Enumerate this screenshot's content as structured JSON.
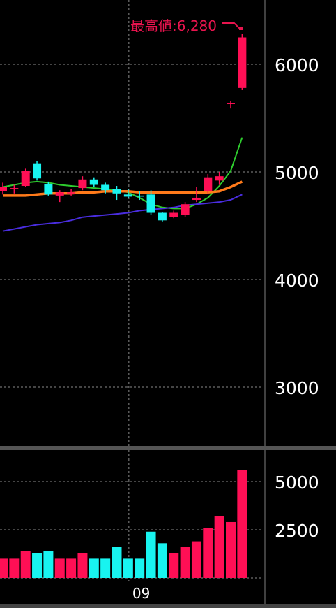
{
  "colors": {
    "background": "#000000",
    "up": "#ff0f55",
    "down": "#18f4f0",
    "ma_short": "#2ecc2e",
    "ma_mid": "#ff7a1a",
    "ma_long": "#4a2de0",
    "grid": "#8a8a8a",
    "separator": "#555555"
  },
  "chart_data": {
    "type": "candlestick",
    "price_axis": {
      "ticks": [
        6000,
        5000,
        4000,
        3000
      ],
      "tick_labels": [
        "6000",
        "5000",
        "4000",
        "3000"
      ],
      "range": [
        2450,
        6600
      ]
    },
    "volume_axis": {
      "ticks": [
        5000,
        2500
      ],
      "tick_labels": [
        "5000",
        "2500"
      ],
      "range": [
        0,
        5600
      ]
    },
    "x_labels": [
      {
        "index": 11,
        "label": "09"
      }
    ],
    "high_annotation": "最高値:6,280",
    "candles": [
      {
        "o": 4820,
        "h": 4900,
        "l": 4790,
        "c": 4860
      },
      {
        "o": 4840,
        "h": 4880,
        "l": 4800,
        "c": 4850
      },
      {
        "o": 4870,
        "h": 5030,
        "l": 4860,
        "c": 5010
      },
      {
        "o": 5080,
        "h": 5100,
        "l": 4920,
        "c": 4940
      },
      {
        "o": 4890,
        "h": 4910,
        "l": 4780,
        "c": 4790
      },
      {
        "o": 4780,
        "h": 4830,
        "l": 4720,
        "c": 4810
      },
      {
        "o": 4800,
        "h": 4840,
        "l": 4780,
        "c": 4810
      },
      {
        "o": 4850,
        "h": 4960,
        "l": 4830,
        "c": 4930
      },
      {
        "o": 4930,
        "h": 4950,
        "l": 4860,
        "c": 4880
      },
      {
        "o": 4880,
        "h": 4900,
        "l": 4800,
        "c": 4830
      },
      {
        "o": 4840,
        "h": 4870,
        "l": 4740,
        "c": 4800
      },
      {
        "o": 4790,
        "h": 4840,
        "l": 4760,
        "c": 4770
      },
      {
        "o": 4780,
        "h": 4820,
        "l": 4740,
        "c": 4770
      },
      {
        "o": 4790,
        "h": 4830,
        "l": 4600,
        "c": 4620
      },
      {
        "o": 4620,
        "h": 4630,
        "l": 4540,
        "c": 4550
      },
      {
        "o": 4580,
        "h": 4640,
        "l": 4570,
        "c": 4620
      },
      {
        "o": 4600,
        "h": 4720,
        "l": 4580,
        "c": 4700
      },
      {
        "o": 4740,
        "h": 4860,
        "l": 4720,
        "c": 4760
      },
      {
        "o": 4820,
        "h": 4980,
        "l": 4800,
        "c": 4950
      },
      {
        "o": 4920,
        "h": 5000,
        "l": 4880,
        "c": 4960
      },
      {
        "o": 5640,
        "h": 5660,
        "l": 5590,
        "c": 5640
      },
      {
        "o": 5780,
        "h": 6280,
        "l": 5760,
        "c": 6250
      }
    ],
    "moving_averages": [
      {
        "name": "short",
        "values": [
          4860,
          4880,
          4900,
          4910,
          4900,
          4880,
          4870,
          4860,
          4850,
          4840,
          4830,
          4810,
          4760,
          4700,
          4670,
          4660,
          4660,
          4700,
          4760,
          4870,
          5010,
          5320
        ]
      },
      {
        "name": "mid",
        "values": [
          4780,
          4780,
          4780,
          4790,
          4800,
          4800,
          4800,
          4810,
          4810,
          4820,
          4820,
          4820,
          4810,
          4810,
          4810,
          4810,
          4810,
          4810,
          4810,
          4820,
          4860,
          4910
        ]
      },
      {
        "name": "long",
        "values": [
          4450,
          4470,
          4490,
          4510,
          4520,
          4530,
          4550,
          4580,
          4590,
          4600,
          4610,
          4620,
          4640,
          4650,
          4660,
          4670,
          4690,
          4700,
          4710,
          4720,
          4740,
          4790
        ]
      }
    ],
    "volumes": [
      1000,
      1000,
      1400,
      1300,
      1400,
      1000,
      1000,
      1300,
      1000,
      1000,
      1600,
      1000,
      1000,
      2400,
      1800,
      1300,
      1600,
      1900,
      2600,
      3200,
      2900,
      5600
    ]
  }
}
